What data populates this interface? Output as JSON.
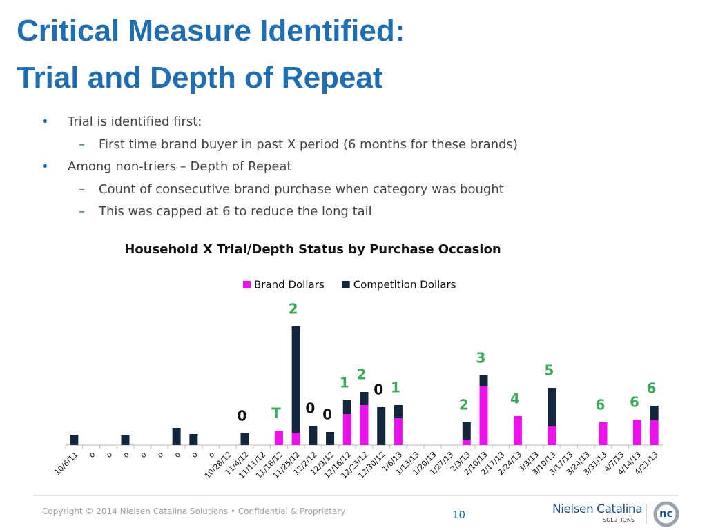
{
  "slide": {
    "title": [
      "Critical Measure Identified:",
      "Trial and Depth of Repeat"
    ],
    "bullets": [
      {
        "level": 1,
        "text": "Trial is identified first:"
      },
      {
        "level": 2,
        "text": "First time brand buyer in past X period (6 months for these brands)"
      },
      {
        "level": 1,
        "text": "Among non-triers – Depth of Repeat"
      },
      {
        "level": 2,
        "text": "Count of consecutive brand purchase when category was bought"
      },
      {
        "level": 2,
        "text": "This was capped at 6 to reduce the long tail"
      }
    ]
  },
  "chart_data": {
    "type": "stacked-bar",
    "title": "Household X Trial/Depth Status by Purchase Occasion",
    "categories": [
      "10/6/11",
      "o",
      "o",
      "o",
      "o",
      "o",
      "o",
      "o",
      "o",
      "10/28/12",
      "11/4/12",
      "11/11/12",
      "11/18/12",
      "11/25/12",
      "12/2/12",
      "12/9/12",
      "12/16/12",
      "12/23/12",
      "12/30/12",
      "1/6/13",
      "1/13/13",
      "1/20/13",
      "1/27/13",
      "2/3/13",
      "2/10/13",
      "2/17/13",
      "2/24/13",
      "3/3/13",
      "3/10/13",
      "3/17/13",
      "3/24/13",
      "3/31/13",
      "4/7/13",
      "4/14/13",
      "4/21/13"
    ],
    "series": [
      {
        "name": "Brand Dollars",
        "color": "#ee11ee",
        "values": [
          0,
          0,
          0,
          0,
          0,
          0,
          0,
          0,
          0,
          0,
          0,
          0,
          21,
          18,
          0,
          0,
          45,
          58,
          0,
          39,
          0,
          0,
          0,
          8,
          85,
          0,
          42,
          0,
          27,
          0,
          0,
          33,
          0,
          37,
          36
        ]
      },
      {
        "name": "Competition Dollars",
        "color": "#14253e",
        "values": [
          15,
          0,
          0,
          15,
          0,
          0,
          25,
          16,
          0,
          0,
          17,
          0,
          0,
          154,
          28,
          19,
          20,
          19,
          55,
          19,
          0,
          0,
          0,
          25,
          16,
          0,
          0,
          0,
          56,
          0,
          0,
          0,
          0,
          0,
          21
        ]
      }
    ],
    "annotations": [
      null,
      null,
      null,
      null,
      null,
      null,
      null,
      null,
      null,
      null,
      "0",
      null,
      "T",
      "2",
      "0",
      "0",
      "1",
      "2",
      "0",
      "1",
      null,
      null,
      null,
      "2",
      "3",
      null,
      "4",
      null,
      "5",
      null,
      null,
      "6",
      null,
      "6",
      "6"
    ],
    "annotation_colors": [
      null,
      null,
      null,
      null,
      null,
      null,
      null,
      null,
      null,
      null,
      "#111111",
      null,
      "#3daa5c",
      "#3daa5c",
      "#111111",
      "#111111",
      "#3daa5c",
      "#3daa5c",
      "#111111",
      "#3daa5c",
      null,
      null,
      null,
      "#3daa5c",
      "#3daa5c",
      null,
      "#3daa5c",
      null,
      "#3daa5c",
      null,
      null,
      "#3daa5c",
      null,
      "#3daa5c",
      "#3daa5c"
    ],
    "legend": "top"
  },
  "footer": {
    "copyright": "Copyright  ©  2014 Nielsen Catalina Solutions  •  Confidential & Proprietary",
    "page": "10",
    "logo_name": "Nielsen Catalina",
    "logo_sub": "SOLUTIONS",
    "logo_mark": "nc"
  }
}
